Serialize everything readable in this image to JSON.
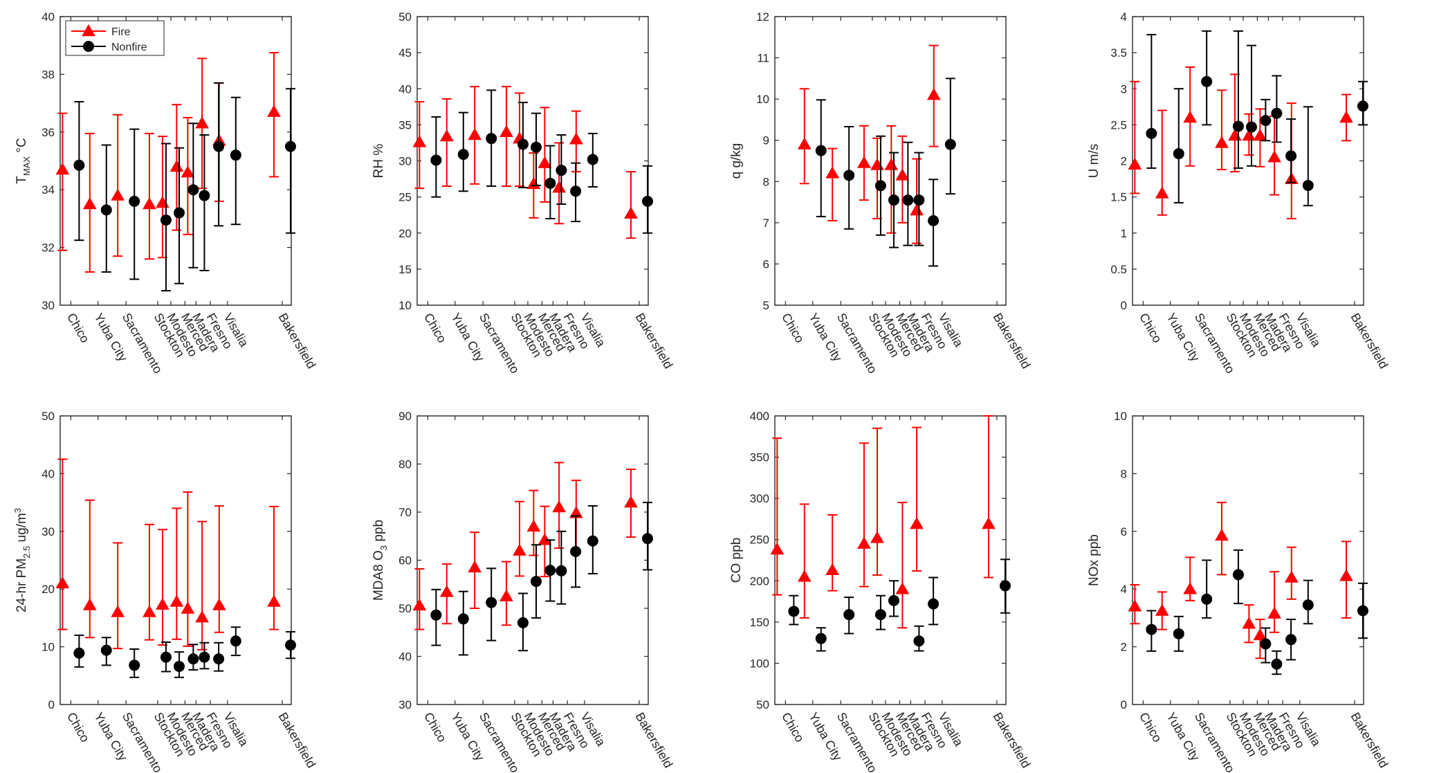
{
  "legend": {
    "fire_label": "Fire",
    "nonfire_label": "Nonfire",
    "fire_color": "#ff0000",
    "nonfire_color": "#000000"
  },
  "chart_data": [
    {
      "id": "tmax",
      "type": "errorbar",
      "ylabel": {
        "main": "T",
        "sub": "MAX",
        "rest": "  °C"
      },
      "ylim": [
        30,
        40
      ],
      "yticks": [
        30,
        32,
        34,
        36,
        38,
        40
      ],
      "categories": [
        "Chico",
        "Yuba City",
        "Sacramento",
        "Stockton",
        "Modesto",
        "Merced",
        "Madera",
        "Fresno",
        "Visalia",
        "Bakersfield"
      ],
      "legend": true,
      "series": [
        {
          "name": "Fire",
          "values": [
            34.7,
            33.5,
            33.8,
            33.5,
            33.55,
            34.8,
            34.6,
            36.3,
            35.7,
            36.7
          ],
          "lower": [
            31.9,
            31.15,
            31.7,
            31.6,
            31.65,
            32.6,
            32.45,
            34.05,
            33.6,
            34.45
          ],
          "upper": [
            36.65,
            35.95,
            36.6,
            35.95,
            35.85,
            36.95,
            36.5,
            38.55,
            37.7,
            38.75
          ]
        },
        {
          "name": "Nonfire",
          "values": [
            34.85,
            33.3,
            33.6,
            32.95,
            33.2,
            34.0,
            33.8,
            35.5,
            35.2,
            35.5
          ],
          "lower": [
            32.25,
            31.15,
            30.9,
            30.5,
            30.75,
            31.3,
            31.2,
            32.75,
            32.8,
            32.5
          ],
          "upper": [
            37.05,
            35.55,
            36.1,
            35.6,
            35.45,
            36.3,
            35.9,
            37.7,
            37.2,
            37.5
          ]
        }
      ]
    },
    {
      "id": "rh",
      "type": "errorbar",
      "ylabel": {
        "main": "RH  %",
        "sub": "",
        "rest": ""
      },
      "ylim": [
        10,
        50
      ],
      "yticks": [
        10,
        15,
        20,
        25,
        30,
        35,
        40,
        45,
        50
      ],
      "categories": [
        "Chico",
        "Yuba City",
        "Sacramento",
        "Stockton",
        "Modesto",
        "Merced",
        "Madera",
        "Fresno",
        "Visalia",
        "Bakersfield"
      ],
      "legend": false,
      "series": [
        {
          "name": "Fire",
          "values": [
            32.6,
            33.4,
            33.6,
            34.0,
            33.1,
            26.8,
            29.7,
            26.3,
            33.0,
            22.7
          ],
          "lower": [
            26.2,
            26.5,
            26.8,
            26.5,
            26.5,
            22.1,
            24.3,
            21.3,
            28.5,
            19.3
          ],
          "upper": [
            38.2,
            38.6,
            40.3,
            40.3,
            39.4,
            31.1,
            37.4,
            32.5,
            36.9,
            28.5
          ]
        },
        {
          "name": "Nonfire",
          "values": [
            30.1,
            30.9,
            33.1,
            32.3,
            31.9,
            26.9,
            28.7,
            25.8,
            30.2,
            24.4
          ],
          "lower": [
            25.0,
            25.8,
            26.5,
            26.3,
            26.6,
            22.0,
            24.0,
            21.6,
            26.4,
            20.0
          ],
          "upper": [
            36.1,
            36.7,
            39.8,
            38.1,
            36.6,
            32.1,
            33.6,
            29.7,
            33.8,
            29.3
          ]
        }
      ]
    },
    {
      "id": "q",
      "type": "errorbar",
      "ylabel": {
        "main": "q  g/kg",
        "sub": "",
        "rest": ""
      },
      "ylim": [
        5,
        12
      ],
      "yticks": [
        5,
        6,
        7,
        8,
        9,
        10,
        11,
        12
      ],
      "categories": [
        "Chico",
        "Yuba City",
        "Sacramento",
        "Stockton",
        "Modesto",
        "Merced",
        "Madera",
        "Fresno",
        "Visalia",
        "Bakersfield"
      ],
      "legend": false,
      "series": [
        {
          "name": "Fire",
          "values": [
            null,
            8.9,
            8.2,
            8.45,
            8.4,
            8.4,
            8.15,
            7.3,
            10.1,
            null
          ],
          "lower": [
            null,
            7.95,
            7.05,
            7.55,
            7.1,
            6.75,
            7.0,
            6.5,
            8.85,
            null
          ],
          "upper": [
            null,
            10.25,
            8.8,
            9.35,
            9.05,
            9.35,
            9.1,
            8.55,
            11.3,
            null
          ]
        },
        {
          "name": "Nonfire",
          "values": [
            null,
            8.75,
            8.15,
            7.9,
            7.55,
            7.55,
            7.55,
            7.05,
            8.9,
            null
          ],
          "lower": [
            null,
            7.15,
            6.85,
            6.7,
            6.4,
            6.45,
            6.45,
            5.95,
            7.7,
            null
          ],
          "upper": [
            null,
            9.98,
            9.33,
            9.1,
            8.7,
            8.95,
            8.7,
            8.05,
            10.5,
            null
          ]
        }
      ]
    },
    {
      "id": "u",
      "type": "errorbar",
      "ylabel": {
        "main": "U  m/s",
        "sub": "",
        "rest": ""
      },
      "ylim": [
        0,
        4
      ],
      "yticks": [
        0,
        0.5,
        1,
        1.5,
        2,
        2.5,
        3,
        3.5,
        4
      ],
      "categories": [
        "Chico",
        "Yuba City",
        "Sacramento",
        "Stockton",
        "Modesto",
        "Merced",
        "Madera",
        "Fresno",
        "Visalia",
        "Bakersfield"
      ],
      "legend": false,
      "series": [
        {
          "name": "Fire",
          "values": [
            1.95,
            1.55,
            2.6,
            2.25,
            2.35,
            2.35,
            2.35,
            2.05,
            1.75,
            2.6
          ],
          "lower": [
            1.55,
            1.25,
            1.93,
            1.88,
            1.85,
            2.08,
            1.92,
            1.53,
            1.2,
            2.28
          ],
          "upper": [
            3.1,
            2.7,
            3.3,
            2.98,
            3.2,
            2.65,
            2.72,
            2.62,
            2.8,
            2.92
          ]
        },
        {
          "name": "Nonfire",
          "values": [
            2.38,
            2.1,
            3.1,
            2.48,
            2.47,
            2.56,
            2.66,
            2.07,
            1.66,
            2.76
          ],
          "lower": [
            1.9,
            1.42,
            2.5,
            1.9,
            1.93,
            2.28,
            2.26,
            1.7,
            1.38,
            2.5
          ],
          "upper": [
            3.75,
            3.0,
            3.8,
            3.8,
            3.6,
            2.85,
            3.18,
            2.58,
            2.75,
            3.1
          ]
        }
      ]
    },
    {
      "id": "pm25",
      "type": "errorbar",
      "ylabel": {
        "main": "24-hr PM",
        "sub": "2.5",
        "rest": "  ug/m",
        "sup": "3"
      },
      "ylim": [
        0,
        50
      ],
      "yticks": [
        0,
        10,
        20,
        30,
        40,
        50
      ],
      "categories": [
        "Chico",
        "Yuba City",
        "Sacramento",
        "Stockton",
        "Modesto",
        "Merced",
        "Madera",
        "Fresno",
        "Visalia",
        "Bakersfield"
      ],
      "legend": false,
      "series": [
        {
          "name": "Fire",
          "values": [
            21.0,
            17.2,
            16.0,
            16.0,
            17.3,
            17.8,
            16.6,
            15.1,
            17.2,
            17.8
          ],
          "lower": [
            13.0,
            11.6,
            9.7,
            11.2,
            10.3,
            11.3,
            10.1,
            9.5,
            12.5,
            13.0
          ],
          "upper": [
            42.5,
            35.4,
            28.0,
            31.2,
            30.3,
            34.0,
            36.8,
            31.7,
            34.4,
            34.3
          ]
        },
        {
          "name": "Nonfire",
          "values": [
            8.9,
            9.4,
            6.8,
            8.2,
            6.6,
            7.9,
            8.2,
            7.9,
            11.0,
            10.3
          ],
          "lower": [
            6.5,
            6.8,
            4.7,
            5.7,
            4.7,
            6.0,
            6.2,
            5.8,
            8.5,
            8.0
          ],
          "upper": [
            12.0,
            11.6,
            9.6,
            10.8,
            9.1,
            10.4,
            10.7,
            10.7,
            13.4,
            12.6
          ]
        }
      ]
    },
    {
      "id": "o3",
      "type": "errorbar",
      "ylabel": {
        "main": "MDA8 O",
        "sub": "3",
        "rest": "  ppb"
      },
      "ylim": [
        30,
        90
      ],
      "yticks": [
        30,
        40,
        50,
        60,
        70,
        80,
        90
      ],
      "categories": [
        "Chico",
        "Yuba City",
        "Sacramento",
        "Stockton",
        "Modesto",
        "Merced",
        "Madera",
        "Fresno",
        "Visalia",
        "Bakersfield"
      ],
      "legend": false,
      "series": [
        {
          "name": "Fire",
          "values": [
            50.6,
            53.4,
            58.5,
            52.5,
            62.0,
            67.0,
            64.2,
            71.0,
            69.8,
            72.0
          ],
          "lower": [
            45.6,
            46.8,
            50.0,
            46.5,
            56.7,
            61.0,
            56.6,
            62.5,
            61.5,
            64.8
          ],
          "upper": [
            58.2,
            59.2,
            65.8,
            59.7,
            72.2,
            74.5,
            71.2,
            80.3,
            76.6,
            78.9
          ]
        },
        {
          "name": "Nonfire",
          "values": [
            48.6,
            47.8,
            51.2,
            47.0,
            55.6,
            57.9,
            57.8,
            61.8,
            64.0,
            64.5
          ],
          "lower": [
            42.3,
            40.3,
            43.3,
            41.2,
            48.0,
            51.5,
            50.9,
            54.4,
            57.2,
            58.0
          ],
          "upper": [
            53.9,
            53.5,
            58.3,
            53.1,
            63.2,
            64.2,
            66.0,
            69.2,
            71.3,
            72.0
          ]
        }
      ]
    },
    {
      "id": "co",
      "type": "errorbar",
      "ylabel": {
        "main": "CO  ppb",
        "sub": "",
        "rest": ""
      },
      "ylim": [
        50,
        400
      ],
      "yticks": [
        50,
        100,
        150,
        200,
        250,
        300,
        350,
        400
      ],
      "categories": [
        "Chico",
        "Yuba City",
        "Sacramento",
        "Stockton",
        "Modesto",
        "Merced",
        "Madera",
        "Fresno",
        "Visalia",
        "Bakersfield"
      ],
      "legend": false,
      "series": [
        {
          "name": "Fire",
          "values": [
            238,
            205,
            213,
            245,
            252,
            null,
            190,
            269,
            null,
            269
          ],
          "lower": [
            183,
            155,
            188,
            193,
            207,
            null,
            143,
            212,
            null,
            204
          ],
          "upper": [
            373,
            293,
            280,
            367,
            385,
            null,
            295,
            386,
            null,
            400
          ]
        },
        {
          "name": "Nonfire",
          "values": [
            163,
            130,
            159,
            159,
            176,
            null,
            127,
            172,
            null,
            194
          ],
          "lower": [
            147,
            115,
            136,
            141,
            157,
            null,
            115,
            147,
            null,
            161
          ],
          "upper": [
            182,
            143,
            180,
            182,
            200,
            null,
            145,
            204,
            null,
            226
          ]
        }
      ]
    },
    {
      "id": "nox",
      "type": "errorbar",
      "ylabel": {
        "main": "NOx  ppb",
        "sub": "",
        "rest": ""
      },
      "ylim": [
        0,
        10
      ],
      "yticks": [
        0,
        2,
        4,
        6,
        8,
        10
      ],
      "categories": [
        "Chico",
        "Yuba City",
        "Sacramento",
        "Stockton",
        "Modesto",
        "Merced",
        "Madera",
        "Fresno",
        "Visalia",
        "Bakersfield"
      ],
      "legend": false,
      "series": [
        {
          "name": "Fire",
          "values": [
            3.4,
            3.25,
            4.0,
            5.85,
            null,
            2.8,
            2.4,
            3.15,
            4.4,
            4.45
          ],
          "lower": [
            2.8,
            2.6,
            3.6,
            4.5,
            null,
            2.15,
            1.6,
            2.5,
            3.65,
            3.0
          ],
          "upper": [
            4.15,
            3.9,
            5.1,
            7.0,
            null,
            3.45,
            2.95,
            4.6,
            5.45,
            5.65
          ]
        },
        {
          "name": "Nonfire",
          "values": [
            2.6,
            2.45,
            3.65,
            4.5,
            null,
            2.1,
            1.4,
            2.25,
            3.45,
            3.25
          ],
          "lower": [
            1.85,
            1.85,
            3.0,
            3.5,
            null,
            1.45,
            1.05,
            1.55,
            2.8,
            2.3
          ],
          "upper": [
            3.25,
            3.05,
            5.0,
            5.35,
            null,
            2.65,
            1.85,
            2.95,
            4.3,
            4.2
          ]
        }
      ]
    }
  ]
}
